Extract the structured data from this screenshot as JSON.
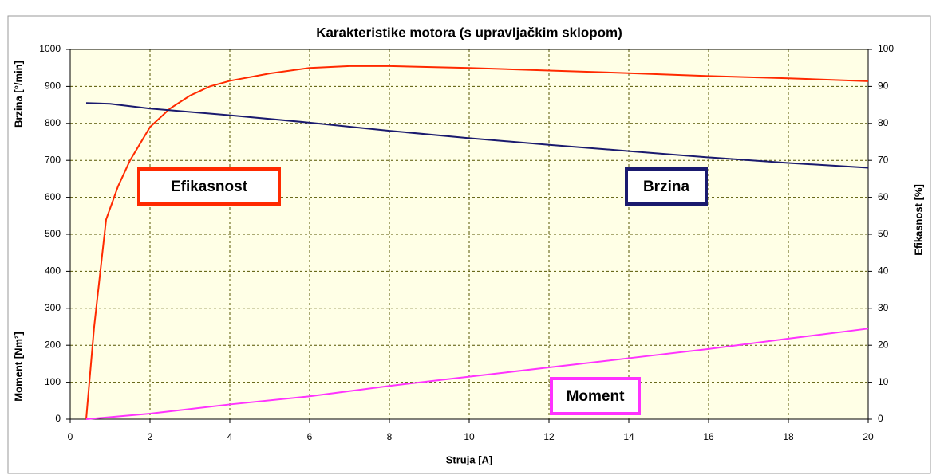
{
  "chart_data": {
    "type": "line",
    "title": "Karakteristike motora (s upravljačkim sklopom)",
    "xlabel": "Struja [A]",
    "ylabels": [
      "Brzina [°/min]",
      "Moment [Nm²]"
    ],
    "y2label": "Efikasnost [%]",
    "xlim": [
      0,
      20
    ],
    "xticks": [
      0,
      2,
      4,
      6,
      8,
      10,
      12,
      14,
      16,
      18,
      20
    ],
    "ylim": [
      0,
      1000
    ],
    "yticks": [
      0,
      100,
      200,
      300,
      400,
      500,
      600,
      700,
      800,
      900,
      1000
    ],
    "y2lim": [
      0,
      100
    ],
    "y2ticks": [
      0,
      10,
      20,
      30,
      40,
      50,
      60,
      70,
      80,
      90,
      100
    ],
    "grid": true,
    "series": [
      {
        "name": "Efikasnost",
        "color": "#ff2a00",
        "axis": "y2",
        "x": [
          0.4,
          0.6,
          0.9,
          1.2,
          1.5,
          2,
          2.5,
          3,
          3.5,
          4,
          5,
          6,
          7,
          8,
          10,
          12,
          14,
          16,
          18,
          20
        ],
        "values": [
          0,
          25,
          54,
          63,
          70,
          79,
          84,
          87.5,
          90,
          91.5,
          93.5,
          95,
          95.5,
          95.5,
          95,
          94.3,
          93.6,
          92.8,
          92.2,
          91.4
        ]
      },
      {
        "name": "Brzina",
        "color": "#1a1a6e",
        "axis": "y",
        "x": [
          0.4,
          1,
          2,
          4,
          6,
          8,
          10,
          12,
          14,
          16,
          18,
          20
        ],
        "values": [
          855,
          853,
          840,
          822,
          802,
          780,
          760,
          742,
          725,
          708,
          693,
          680
        ]
      },
      {
        "name": "Moment",
        "color": "#ff33ff",
        "axis": "y",
        "x": [
          0.4,
          2,
          4,
          6,
          8,
          10,
          12,
          14,
          16,
          18,
          20
        ],
        "values": [
          0,
          15,
          40,
          62,
          90,
          115,
          140,
          165,
          190,
          218,
          245
        ]
      }
    ]
  }
}
